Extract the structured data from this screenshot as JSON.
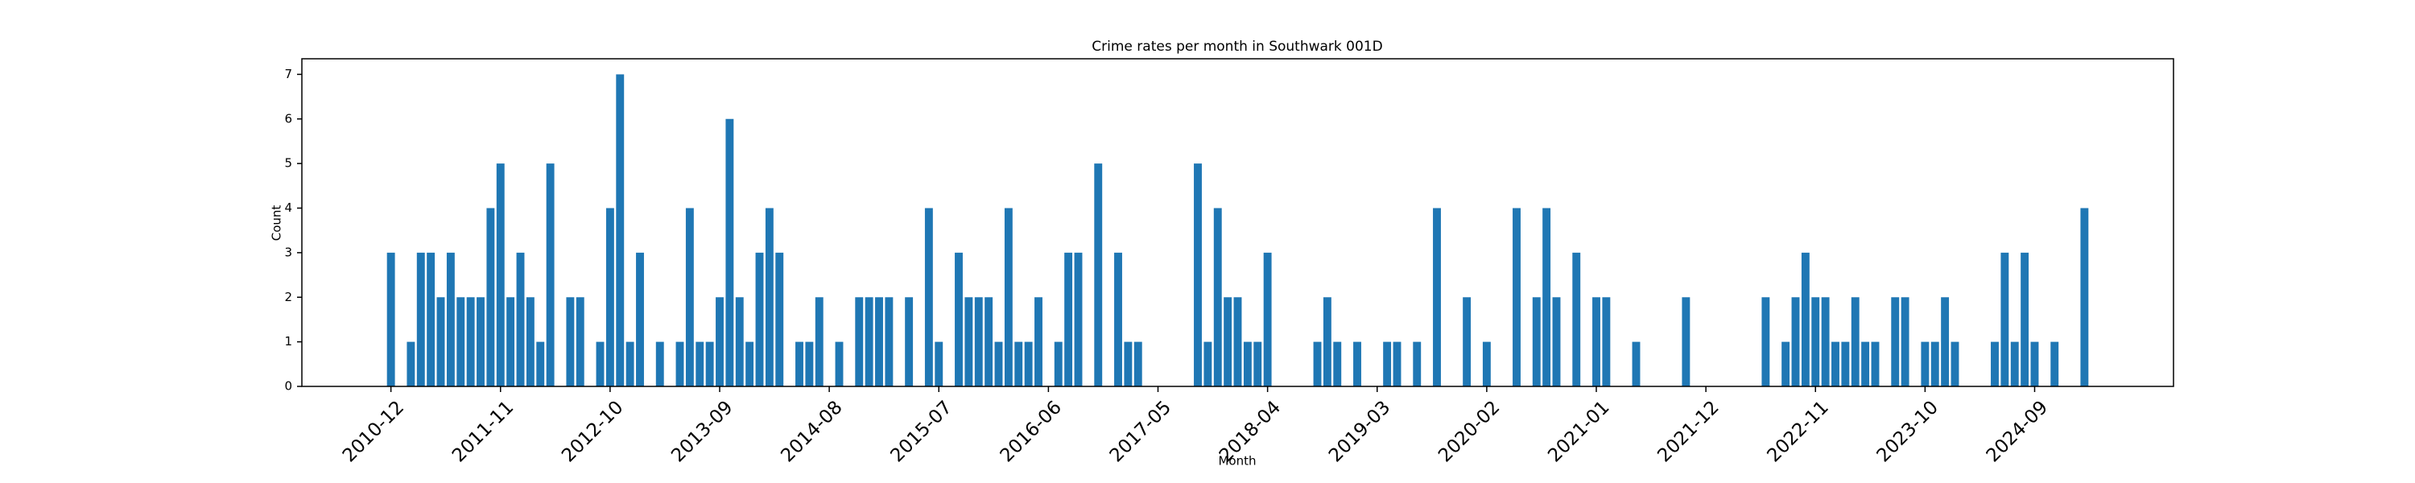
{
  "chart_data": {
    "type": "bar",
    "title": "Crime rates per month in Southwark 001D",
    "x_label": "Month",
    "y_label": "Count",
    "color": "#1f77b4",
    "categories": [
      "2010-12",
      null,
      null,
      null,
      null,
      null,
      null,
      null,
      null,
      null,
      null,
      "2011-11",
      null,
      null,
      null,
      null,
      null,
      null,
      null,
      null,
      null,
      null,
      "2012-10",
      null,
      null,
      null,
      null,
      null,
      null,
      null,
      null,
      null,
      null,
      "2013-09",
      null,
      null,
      null,
      null,
      null,
      null,
      null,
      null,
      null,
      null,
      "2014-08",
      null,
      null,
      null,
      null,
      null,
      null,
      null,
      null,
      null,
      null,
      "2015-07",
      null,
      null,
      null,
      null,
      null,
      null,
      null,
      null,
      null,
      null,
      "2016-06",
      null,
      null,
      null,
      null,
      null,
      null,
      null,
      null,
      null,
      null,
      "2017-05",
      null,
      null,
      null,
      null,
      null,
      null,
      null,
      null,
      null,
      null,
      "2018-04",
      null,
      null,
      null,
      null,
      null,
      null,
      null,
      null,
      null,
      null,
      "2019-03",
      null,
      null,
      null,
      null,
      null,
      null,
      null,
      null,
      null,
      null,
      "2020-02",
      null,
      null,
      null,
      null,
      null,
      null,
      null,
      null,
      null,
      null,
      "2021-01",
      null,
      null,
      null,
      null,
      null,
      null,
      null,
      null,
      null,
      null,
      "2021-12",
      null,
      null,
      null,
      null,
      null,
      null,
      null,
      null,
      null,
      null,
      "2022-11",
      null,
      null,
      null,
      null,
      null,
      null,
      null,
      null,
      null,
      null,
      "2023-10",
      null,
      null,
      null,
      null,
      null,
      null,
      null,
      null,
      null,
      null,
      "2024-09",
      null,
      null,
      null,
      null,
      null
    ],
    "values": [
      3,
      0,
      1,
      3,
      3,
      2,
      3,
      2,
      2,
      2,
      4,
      5,
      2,
      3,
      2,
      1,
      5,
      0,
      2,
      2,
      0,
      1,
      4,
      7,
      1,
      3,
      0,
      1,
      0,
      1,
      4,
      1,
      1,
      2,
      6,
      2,
      1,
      3,
      4,
      3,
      0,
      1,
      1,
      2,
      0,
      1,
      0,
      2,
      2,
      2,
      2,
      0,
      2,
      0,
      4,
      1,
      0,
      3,
      2,
      2,
      2,
      1,
      4,
      1,
      1,
      2,
      0,
      1,
      3,
      3,
      0,
      5,
      0,
      3,
      1,
      1,
      0,
      0,
      0,
      0,
      0,
      5,
      1,
      4,
      2,
      2,
      1,
      1,
      3,
      0,
      0,
      0,
      0,
      1,
      2,
      1,
      0,
      1,
      0,
      0,
      1,
      1,
      0,
      1,
      0,
      4,
      0,
      0,
      2,
      0,
      1,
      0,
      0,
      4,
      0,
      2,
      4,
      2,
      0,
      3,
      0,
      2,
      2,
      0,
      0,
      1,
      0,
      0,
      0,
      0,
      2,
      0,
      0,
      0,
      0,
      0,
      0,
      0,
      2,
      0,
      1,
      2,
      3,
      2,
      2,
      1,
      1,
      2,
      1,
      1,
      0,
      2,
      2,
      0,
      1,
      1,
      2,
      1,
      0,
      0,
      0,
      1,
      3,
      1,
      3,
      1,
      0,
      1,
      0,
      0,
      4
    ],
    "ylim": [
      0,
      7.35
    ],
    "yticks": [
      0,
      1,
      2,
      3,
      4,
      5,
      6,
      7
    ],
    "grid": false
  }
}
